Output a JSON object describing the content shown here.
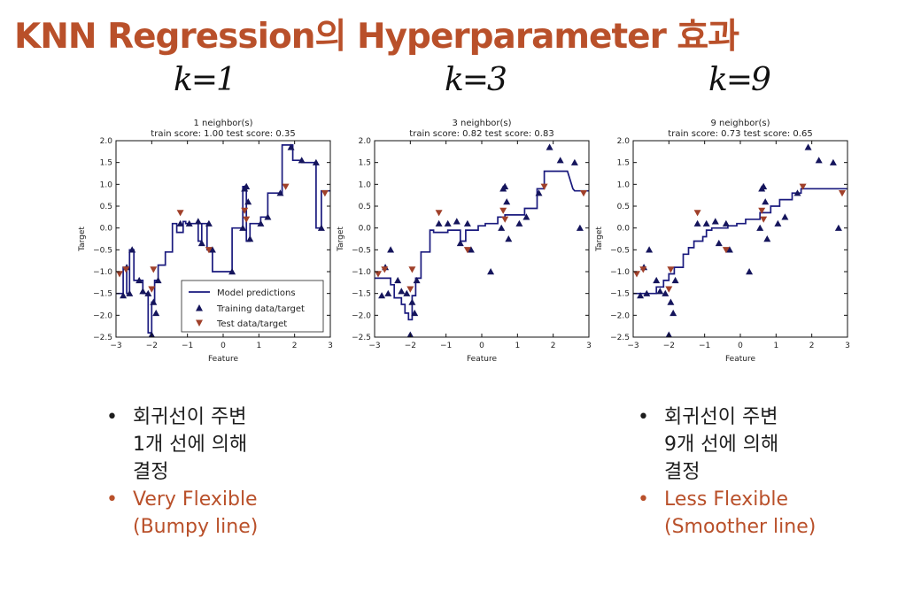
{
  "slide": {
    "title": "KNN Regression의 Hyperparameter 효과",
    "handwritten_labels": [
      "k=1",
      "k=3",
      "k=9"
    ],
    "colors": {
      "title": "#b9502a",
      "accent": "#b9502a",
      "line": "#1a1a7e",
      "train": "#15155c",
      "test": "#a0402a"
    }
  },
  "chart_data": [
    {
      "type": "scatter+step-line",
      "title": "1 neighbor(s)",
      "subtitle": "train score: 1.00 test score: 0.35",
      "xlabel": "Feature",
      "ylabel": "Target",
      "xlim": [
        -3,
        3
      ],
      "ylim": [
        -2.5,
        2.0
      ],
      "xticks": [
        -3,
        -2,
        -1,
        0,
        1,
        2,
        3
      ],
      "yticks": [
        -2.5,
        -2.0,
        -1.5,
        -1.0,
        -0.5,
        0.0,
        0.5,
        1.0,
        1.5,
        2.0
      ],
      "legend": {
        "placement": "lower-right",
        "entries": [
          "Model predictions",
          "Training data/target",
          "Test data/target"
        ]
      },
      "series": [
        {
          "name": "Model predictions",
          "kind": "line",
          "x": [
            -3.0,
            -2.8,
            -2.8,
            -2.7,
            -2.7,
            -2.62,
            -2.62,
            -2.5,
            -2.5,
            -2.25,
            -2.25,
            -2.1,
            -2.1,
            -2.0,
            -2.0,
            -1.92,
            -1.92,
            -1.82,
            -1.82,
            -1.62,
            -1.62,
            -1.42,
            -1.42,
            -1.3,
            -1.3,
            -1.12,
            -1.12,
            -1.05,
            -1.05,
            -0.7,
            -0.7,
            -0.6,
            -0.6,
            -0.45,
            -0.45,
            -0.3,
            -0.3,
            0.25,
            0.25,
            0.55,
            0.55,
            0.65,
            0.65,
            0.75,
            0.75,
            1.05,
            1.05,
            1.25,
            1.25,
            1.65,
            1.65,
            1.95,
            1.95,
            2.2,
            2.2,
            2.6,
            2.6,
            2.75,
            2.75,
            3.0
          ],
          "y": [
            -1.5,
            -1.5,
            -0.9,
            -0.9,
            -1.5,
            -1.5,
            -0.5,
            -0.5,
            -1.2,
            -1.2,
            -1.5,
            -1.5,
            -2.4,
            -2.4,
            -1.7,
            -1.7,
            -1.2,
            -1.2,
            -0.85,
            -0.85,
            -0.55,
            -0.55,
            0.1,
            0.1,
            -0.1,
            -0.1,
            0.15,
            0.15,
            0.1,
            0.1,
            -0.3,
            -0.3,
            0.1,
            0.1,
            -0.5,
            -0.5,
            -1.0,
            -1.0,
            0.0,
            0.0,
            0.95,
            0.95,
            -0.3,
            -0.3,
            0.1,
            0.1,
            0.25,
            0.25,
            0.8,
            0.8,
            1.9,
            1.9,
            1.55,
            1.55,
            1.5,
            1.5,
            0.0,
            0.0,
            0.85,
            0.85
          ]
        },
        {
          "name": "Training data/target",
          "kind": "marker-up",
          "x": [
            -2.8,
            -2.7,
            -2.62,
            -2.55,
            -2.35,
            -2.25,
            -2.1,
            -2.0,
            -1.95,
            -1.88,
            -1.82,
            -1.2,
            -0.95,
            -0.7,
            -0.6,
            -0.4,
            -0.3,
            0.25,
            0.55,
            0.6,
            0.65,
            0.7,
            0.75,
            1.05,
            1.25,
            1.6,
            1.9,
            2.2,
            2.6,
            2.75
          ],
          "y": [
            -1.55,
            -0.9,
            -1.5,
            -0.5,
            -1.2,
            -1.45,
            -1.5,
            -2.45,
            -1.7,
            -1.95,
            -1.2,
            0.1,
            0.1,
            0.15,
            -0.35,
            0.1,
            -0.5,
            -1.0,
            0.0,
            0.9,
            0.95,
            0.6,
            -0.25,
            0.1,
            0.25,
            0.8,
            1.85,
            1.55,
            1.5,
            0.0
          ]
        },
        {
          "name": "Test data/target",
          "kind": "marker-down",
          "x": [
            -2.9,
            -2.72,
            -2.0,
            -1.95,
            -1.2,
            -0.4,
            0.6,
            0.65,
            1.75,
            2.85
          ],
          "y": [
            -1.05,
            -0.95,
            -1.4,
            -0.95,
            0.35,
            -0.5,
            0.4,
            0.2,
            0.95,
            0.8
          ]
        }
      ]
    },
    {
      "type": "scatter+step-line",
      "title": "3 neighbor(s)",
      "subtitle": "train score: 0.82 test score: 0.83",
      "xlabel": "Feature",
      "ylabel": "Target",
      "xlim": [
        -3,
        3
      ],
      "ylim": [
        -2.5,
        2.0
      ],
      "xticks": [
        -3,
        -2,
        -1,
        0,
        1,
        2,
        3
      ],
      "yticks": [
        -2.5,
        -2.0,
        -1.5,
        -1.0,
        -0.5,
        0.0,
        0.5,
        1.0,
        1.5,
        2.0
      ],
      "series": [
        {
          "name": "Model predictions",
          "kind": "line",
          "x": [
            -3.0,
            -2.55,
            -2.55,
            -2.45,
            -2.45,
            -2.25,
            -2.25,
            -2.15,
            -2.15,
            -2.05,
            -2.05,
            -1.95,
            -1.95,
            -1.85,
            -1.85,
            -1.7,
            -1.7,
            -1.45,
            -1.45,
            -1.35,
            -1.35,
            -0.95,
            -0.95,
            -0.6,
            -0.6,
            -0.45,
            -0.45,
            -0.1,
            -0.1,
            0.1,
            0.1,
            0.45,
            0.45,
            0.65,
            0.65,
            0.85,
            0.85,
            1.2,
            1.2,
            1.55,
            1.55,
            1.75,
            1.75,
            2.25,
            2.4,
            2.55,
            2.6,
            3.0
          ],
          "y": [
            -1.15,
            -1.15,
            -1.3,
            -1.3,
            -1.6,
            -1.6,
            -1.75,
            -1.75,
            -1.95,
            -1.95,
            -2.1,
            -2.1,
            -1.55,
            -1.55,
            -1.15,
            -1.15,
            -0.55,
            -0.55,
            -0.05,
            -0.05,
            -0.1,
            -0.1,
            -0.05,
            -0.05,
            -0.3,
            -0.3,
            -0.05,
            -0.05,
            0.05,
            0.05,
            0.1,
            0.1,
            0.25,
            0.25,
            0.3,
            0.3,
            0.3,
            0.3,
            0.45,
            0.45,
            0.9,
            0.9,
            1.3,
            1.3,
            1.3,
            0.9,
            0.85,
            0.85
          ]
        },
        {
          "name": "Training data/target",
          "kind": "marker-up",
          "x": [
            -2.8,
            -2.7,
            -2.62,
            -2.55,
            -2.35,
            -2.25,
            -2.1,
            -2.0,
            -1.95,
            -1.88,
            -1.82,
            -1.2,
            -0.95,
            -0.7,
            -0.6,
            -0.4,
            -0.3,
            0.25,
            0.55,
            0.6,
            0.65,
            0.7,
            0.75,
            1.05,
            1.25,
            1.6,
            1.9,
            2.2,
            2.6,
            2.75
          ],
          "y": [
            -1.55,
            -0.9,
            -1.5,
            -0.5,
            -1.2,
            -1.45,
            -1.5,
            -2.45,
            -1.7,
            -1.95,
            -1.2,
            0.1,
            0.1,
            0.15,
            -0.35,
            0.1,
            -0.5,
            -1.0,
            0.0,
            0.9,
            0.95,
            0.6,
            -0.25,
            0.1,
            0.25,
            0.8,
            1.85,
            1.55,
            1.5,
            0.0
          ]
        },
        {
          "name": "Test data/target",
          "kind": "marker-down",
          "x": [
            -2.9,
            -2.72,
            -2.0,
            -1.95,
            -1.2,
            -0.4,
            0.6,
            0.65,
            1.75,
            2.85
          ],
          "y": [
            -1.05,
            -0.95,
            -1.4,
            -0.95,
            0.35,
            -0.5,
            0.4,
            0.2,
            0.95,
            0.8
          ]
        }
      ]
    },
    {
      "type": "scatter+step-line",
      "title": "9 neighbor(s)",
      "subtitle": "train score: 0.73 test score: 0.65",
      "xlabel": "Feature",
      "ylabel": "Target",
      "xlim": [
        -3,
        3
      ],
      "ylim": [
        -2.5,
        2.0
      ],
      "xticks": [
        -3,
        -2,
        -1,
        0,
        1,
        2,
        3
      ],
      "yticks": [
        -2.5,
        -2.0,
        -1.5,
        -1.0,
        -0.5,
        0.0,
        0.5,
        1.0,
        1.5,
        2.0
      ],
      "series": [
        {
          "name": "Model predictions",
          "kind": "line",
          "x": [
            -3.0,
            -2.35,
            -2.35,
            -2.15,
            -2.15,
            -2.0,
            -2.0,
            -1.85,
            -1.85,
            -1.6,
            -1.6,
            -1.45,
            -1.45,
            -1.3,
            -1.3,
            -1.05,
            -1.05,
            -0.95,
            -0.95,
            -0.8,
            -0.8,
            -0.35,
            -0.35,
            -0.1,
            -0.1,
            0.15,
            0.15,
            0.55,
            0.55,
            0.85,
            0.85,
            1.1,
            1.1,
            1.45,
            1.45,
            1.7,
            1.7,
            3.0
          ],
          "y": [
            -1.5,
            -1.5,
            -1.35,
            -1.35,
            -1.2,
            -1.2,
            -1.05,
            -1.05,
            -0.9,
            -0.9,
            -0.6,
            -0.6,
            -0.45,
            -0.45,
            -0.3,
            -0.3,
            -0.2,
            -0.2,
            -0.05,
            -0.05,
            0.0,
            0.0,
            0.05,
            0.05,
            0.1,
            0.1,
            0.2,
            0.2,
            0.35,
            0.35,
            0.5,
            0.5,
            0.65,
            0.65,
            0.8,
            0.8,
            0.9,
            0.9
          ]
        },
        {
          "name": "Training data/target",
          "kind": "marker-up",
          "x": [
            -2.8,
            -2.7,
            -2.62,
            -2.55,
            -2.35,
            -2.25,
            -2.1,
            -2.0,
            -1.95,
            -1.88,
            -1.82,
            -1.2,
            -0.95,
            -0.7,
            -0.6,
            -0.4,
            -0.3,
            0.25,
            0.55,
            0.6,
            0.65,
            0.7,
            0.75,
            1.05,
            1.25,
            1.6,
            1.9,
            2.2,
            2.6,
            2.75
          ],
          "y": [
            -1.55,
            -0.9,
            -1.5,
            -0.5,
            -1.2,
            -1.45,
            -1.5,
            -2.45,
            -1.7,
            -1.95,
            -1.2,
            0.1,
            0.1,
            0.15,
            -0.35,
            0.1,
            -0.5,
            -1.0,
            0.0,
            0.9,
            0.95,
            0.6,
            -0.25,
            0.1,
            0.25,
            0.8,
            1.85,
            1.55,
            1.5,
            0.0
          ]
        },
        {
          "name": "Test data/target",
          "kind": "marker-down",
          "x": [
            -2.9,
            -2.72,
            -2.0,
            -1.95,
            -1.2,
            -0.4,
            0.6,
            0.65,
            1.75,
            2.85
          ],
          "y": [
            -1.05,
            -0.95,
            -1.4,
            -0.95,
            0.35,
            -0.5,
            0.4,
            0.2,
            0.95,
            0.8
          ]
        }
      ]
    }
  ],
  "notes": {
    "left": [
      {
        "text": "회귀선이 주변\n1개 선에 의해\n결정",
        "tone": "black"
      },
      {
        "text": "Very Flexible\n(Bumpy line)",
        "tone": "red"
      }
    ],
    "right": [
      {
        "text": "회귀선이 주변\n9개 선에 의해\n결정",
        "tone": "black"
      },
      {
        "text": "Less Flexible\n(Smoother line)",
        "tone": "red"
      }
    ]
  }
}
